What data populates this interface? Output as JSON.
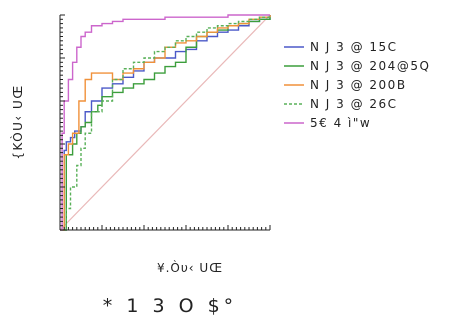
{
  "chart_data": {
    "type": "line",
    "title": "",
    "xlabel": "¥.Òυ‹ UŒ",
    "ylabel": "{KÒU‹ UŒ",
    "caption": "* 1   3 O $°",
    "xlim": [
      0,
      1
    ],
    "ylim": [
      0,
      1
    ],
    "grid": false,
    "legend_position": "right",
    "series": [
      {
        "name": "N J 3 @ 15C",
        "color": "#4b59c8",
        "dash": "solid",
        "x": [
          0,
          0.02,
          0.03,
          0.05,
          0.07,
          0.1,
          0.12,
          0.15,
          0.2,
          0.25,
          0.3,
          0.35,
          0.4,
          0.45,
          0.5,
          0.55,
          0.6,
          0.65,
          0.7,
          0.75,
          0.8,
          0.85,
          0.9,
          0.95,
          1.0
        ],
        "y": [
          0,
          0.37,
          0.41,
          0.43,
          0.46,
          0.48,
          0.55,
          0.6,
          0.66,
          0.68,
          0.71,
          0.74,
          0.78,
          0.8,
          0.8,
          0.83,
          0.84,
          0.88,
          0.9,
          0.92,
          0.93,
          0.95,
          0.97,
          0.98,
          1.0
        ]
      },
      {
        "name": "N J 3 @ 204@5Q",
        "color": "#3c9e3c",
        "dash": "solid",
        "x": [
          0,
          0.03,
          0.06,
          0.08,
          0.1,
          0.12,
          0.15,
          0.18,
          0.2,
          0.25,
          0.3,
          0.35,
          0.4,
          0.45,
          0.5,
          0.55,
          0.6,
          0.65,
          0.7,
          0.75,
          0.8,
          0.85,
          0.9,
          0.95,
          1.0
        ],
        "y": [
          0,
          0.35,
          0.4,
          0.45,
          0.48,
          0.5,
          0.55,
          0.58,
          0.62,
          0.64,
          0.66,
          0.68,
          0.7,
          0.73,
          0.76,
          0.78,
          0.85,
          0.9,
          0.92,
          0.93,
          0.95,
          0.96,
          0.97,
          0.98,
          1.0
        ]
      },
      {
        "name": "N J 3 @ 200B",
        "color": "#f0913a",
        "dash": "solid",
        "x": [
          0,
          0.02,
          0.04,
          0.06,
          0.09,
          0.12,
          0.15,
          0.2,
          0.25,
          0.3,
          0.35,
          0.4,
          0.45,
          0.5,
          0.55,
          0.6,
          0.65,
          0.7,
          0.75,
          0.8,
          0.85,
          0.9,
          0.95,
          1.0
        ],
        "y": [
          0,
          0.35,
          0.4,
          0.45,
          0.6,
          0.7,
          0.73,
          0.73,
          0.7,
          0.73,
          0.75,
          0.78,
          0.8,
          0.85,
          0.87,
          0.88,
          0.9,
          0.92,
          0.94,
          0.95,
          0.96,
          0.98,
          0.99,
          1.0
        ]
      },
      {
        "name": "N J 3 @ 26C",
        "color": "#58b058",
        "dash": "dash",
        "x": [
          0,
          0.03,
          0.05,
          0.08,
          0.1,
          0.12,
          0.15,
          0.2,
          0.25,
          0.3,
          0.35,
          0.4,
          0.45,
          0.5,
          0.55,
          0.6,
          0.65,
          0.7,
          0.75,
          0.8,
          0.85,
          0.9,
          0.95,
          1.0
        ],
        "y": [
          0,
          0.1,
          0.2,
          0.3,
          0.38,
          0.45,
          0.55,
          0.6,
          0.7,
          0.75,
          0.78,
          0.8,
          0.83,
          0.85,
          0.88,
          0.9,
          0.92,
          0.94,
          0.95,
          0.96,
          0.97,
          0.98,
          0.99,
          1.0
        ]
      },
      {
        "name": "5€ 4 ì\"w",
        "color": "#cc66cc",
        "dash": "solid",
        "x": [
          0,
          0.01,
          0.02,
          0.04,
          0.06,
          0.08,
          0.1,
          0.12,
          0.15,
          0.2,
          0.25,
          0.3,
          0.4,
          0.5,
          0.6,
          0.7,
          0.8,
          0.9,
          1.0
        ],
        "y": [
          0,
          0.45,
          0.6,
          0.7,
          0.78,
          0.85,
          0.9,
          0.92,
          0.95,
          0.96,
          0.97,
          0.98,
          0.98,
          0.99,
          0.99,
          0.99,
          1.0,
          1.0,
          1.0
        ]
      },
      {
        "name": "",
        "color": "#e9b8b8",
        "dash": "solid",
        "x": [
          0,
          1
        ],
        "y": [
          0,
          1
        ]
      }
    ]
  }
}
